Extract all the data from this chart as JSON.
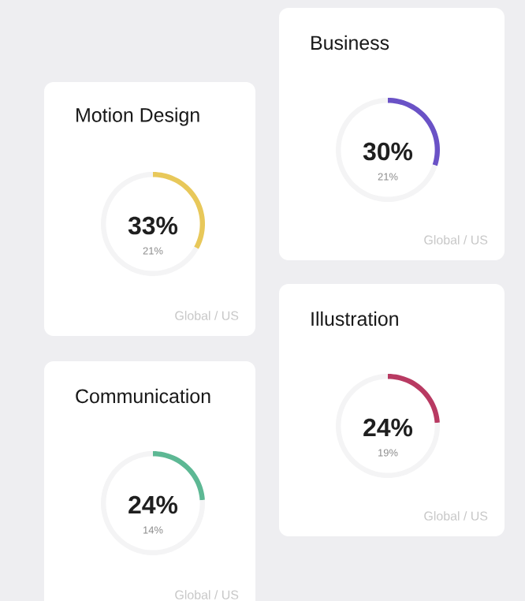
{
  "chart_data": [
    {
      "type": "donut",
      "title": "Motion Design",
      "categories": [
        null,
        null
      ],
      "values": [
        33,
        67
      ],
      "colors": [
        "#e8c85a",
        "#f4f4f5"
      ],
      "annotations": [
        "33%",
        "21%",
        "Global / US"
      ]
    },
    {
      "type": "donut",
      "title": "Business",
      "categories": [
        null,
        null
      ],
      "values": [
        30,
        70
      ],
      "colors": [
        "#6a52c6",
        "#f4f4f5"
      ],
      "annotations": [
        "30%",
        "21%",
        "Global / US"
      ]
    },
    {
      "type": "donut",
      "title": "Communication",
      "categories": [
        null,
        null
      ],
      "values": [
        24,
        76
      ],
      "colors": [
        "#5db894",
        "#f4f4f5"
      ],
      "annotations": [
        "24%",
        "14%",
        "Global / US"
      ]
    },
    {
      "type": "donut",
      "title": "Illustration",
      "categories": [
        null,
        null
      ],
      "values": [
        24,
        76
      ],
      "colors": [
        "#b83a62",
        "#f4f4f5"
      ],
      "annotations": [
        "24%",
        "19%",
        "Global / US"
      ]
    }
  ]
}
